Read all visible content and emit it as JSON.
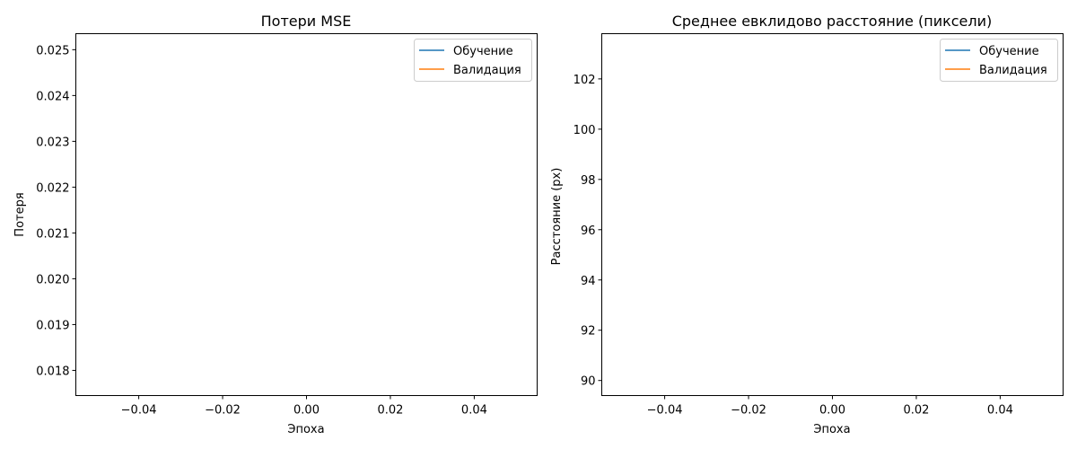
{
  "chart_data": [
    {
      "type": "line",
      "title": "Потери MSE",
      "xlabel": "Эпоха",
      "ylabel": "Потеря",
      "xlim": [
        -0.055,
        0.055
      ],
      "ylim": [
        0.01745,
        0.02535
      ],
      "xticks": [
        -0.04,
        -0.02,
        0.0,
        0.02,
        0.04
      ],
      "xtick_labels": [
        "−0.04",
        "−0.02",
        "0.00",
        "0.02",
        "0.04"
      ],
      "yticks": [
        0.018,
        0.019,
        0.02,
        0.021,
        0.022,
        0.023,
        0.024,
        0.025
      ],
      "ytick_labels": [
        "0.018",
        "0.019",
        "0.020",
        "0.021",
        "0.022",
        "0.023",
        "0.024",
        "0.025"
      ],
      "grid": false,
      "legend_position": "top-right",
      "series": [
        {
          "name": "Обучение",
          "color": "#1f77b4",
          "x": [],
          "y": []
        },
        {
          "name": "Валидация",
          "color": "#ff7f0e",
          "x": [],
          "y": []
        }
      ]
    },
    {
      "type": "line",
      "title": "Среднее евклидово расстояние (пиксели)",
      "xlabel": "Эпоха",
      "ylabel": "Расстояние (px)",
      "xlim": [
        -0.055,
        0.055
      ],
      "ylim": [
        89.4,
        103.8
      ],
      "xticks": [
        -0.04,
        -0.02,
        0.0,
        0.02,
        0.04
      ],
      "xtick_labels": [
        "−0.04",
        "−0.02",
        "0.00",
        "0.02",
        "0.04"
      ],
      "yticks": [
        90,
        92,
        94,
        96,
        98,
        100,
        102
      ],
      "ytick_labels": [
        "90",
        "92",
        "94",
        "96",
        "98",
        "100",
        "102"
      ],
      "grid": false,
      "legend_position": "top-right",
      "series": [
        {
          "name": "Обучение",
          "color": "#1f77b4",
          "x": [],
          "y": []
        },
        {
          "name": "Валидация",
          "color": "#ff7f0e",
          "x": [],
          "y": []
        }
      ]
    }
  ]
}
